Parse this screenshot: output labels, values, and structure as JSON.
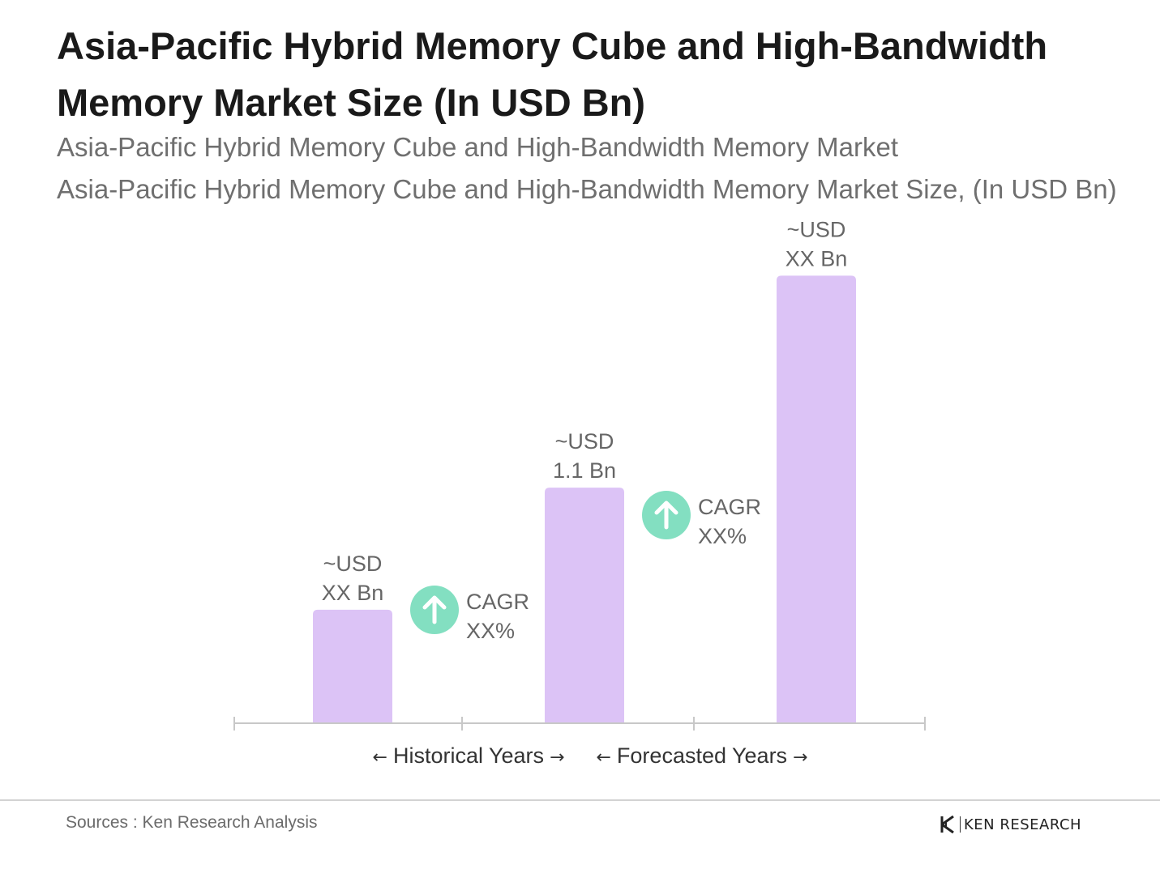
{
  "title": "Asia-Pacific Hybrid Memory Cube and High-Bandwidth Memory Market Size (In USD Bn)",
  "subtitle_1": "Asia-Pacific Hybrid Memory Cube and High-Bandwidth Memory Market",
  "subtitle_2": "Asia-Pacific Hybrid Memory Cube and High-Bandwidth Memory Market Size, (In USD Bn)",
  "colors": {
    "bar": "#dcc3f6",
    "cagr_circle": "#83dfc1",
    "axis": "#c8c8c8",
    "label": "#666666",
    "period_label": "#333333"
  },
  "chart_data": {
    "type": "bar",
    "categories": [
      "",
      "",
      ""
    ],
    "values": [
      0.53,
      1.1,
      2.09
    ],
    "value_labels": [
      [
        "~USD",
        "XX Bn"
      ],
      [
        "~USD",
        "1.1 Bn"
      ],
      [
        "~USD",
        "XX Bn"
      ]
    ],
    "ylim": [
      0,
      2.5
    ],
    "grid": false,
    "legend": "none",
    "cagr_annotations": [
      {
        "icon": "arrow-up-icon",
        "line1": "CAGR",
        "line2": "XX%"
      },
      {
        "icon": "arrow-up-icon",
        "line1": "CAGR",
        "line2": "XX%"
      }
    ],
    "period_labels": [
      {
        "left_arrow": "←",
        "text": "Historical Years",
        "right_arrow": "→"
      },
      {
        "left_arrow": "←",
        "text": "Forecasted Years",
        "right_arrow": "→"
      }
    ]
  },
  "footer": {
    "source": "Sources : Ken Research Analysis",
    "logo_text": "KEN RESEARCH"
  }
}
